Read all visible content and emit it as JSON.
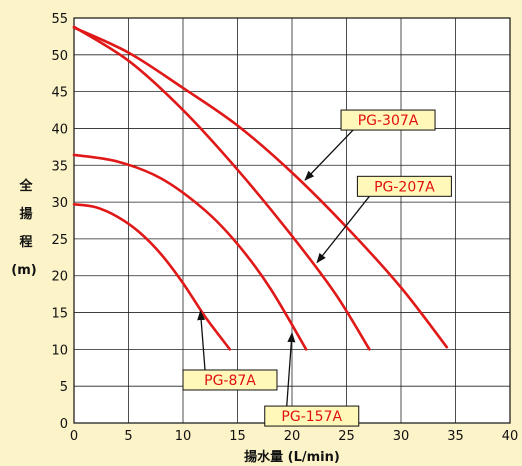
{
  "chart_data": {
    "type": "line",
    "xlabel": "揚水量 (L/min)",
    "ylabel_chars": [
      "全",
      "揚",
      "程"
    ],
    "ylabel_unit": "(m)",
    "xlim": [
      0,
      40
    ],
    "ylim": [
      0,
      55
    ],
    "x_ticks": [
      "0",
      "5",
      "10",
      "15",
      "20",
      "25",
      "30",
      "35",
      "40"
    ],
    "y_ticks": [
      "0",
      "5",
      "10",
      "15",
      "20",
      "25",
      "30",
      "35",
      "40",
      "45",
      "50",
      "55"
    ],
    "grid": true,
    "line_color": "#e01818",
    "series": [
      {
        "name": "PG-87A",
        "points": [
          [
            0,
            29.7
          ],
          [
            2,
            29.3
          ],
          [
            4,
            28.0
          ],
          [
            6,
            25.9
          ],
          [
            8,
            22.9
          ],
          [
            10,
            19.0
          ],
          [
            12,
            14.5
          ],
          [
            14.3,
            10.0
          ]
        ]
      },
      {
        "name": "PG-157A",
        "points": [
          [
            0,
            36.4
          ],
          [
            4,
            35.5
          ],
          [
            8,
            33.2
          ],
          [
            12,
            28.9
          ],
          [
            15,
            24.3
          ],
          [
            18,
            18.3
          ],
          [
            21.3,
            10.0
          ]
        ]
      },
      {
        "name": "PG-207A",
        "points": [
          [
            0,
            53.8
          ],
          [
            5,
            49.2
          ],
          [
            10,
            42.5
          ],
          [
            15,
            34.4
          ],
          [
            20,
            25.4
          ],
          [
            24,
            17.5
          ],
          [
            27.1,
            10.0
          ]
        ]
      },
      {
        "name": "PG-307A",
        "points": [
          [
            0,
            53.7
          ],
          [
            5,
            50.3
          ],
          [
            10,
            45.5
          ],
          [
            15,
            40.4
          ],
          [
            20,
            34.0
          ],
          [
            25,
            26.6
          ],
          [
            30,
            18.4
          ],
          [
            34.2,
            10.3
          ]
        ]
      }
    ],
    "callouts": [
      {
        "series": "PG-307A",
        "label": "PG-307A",
        "box": [
          24.5,
          42.5
        ],
        "arrow_to": [
          21.2,
          33.0
        ]
      },
      {
        "series": "PG-207A",
        "label": "PG-207A",
        "box": [
          26.0,
          33.5
        ],
        "arrow_to": [
          22.3,
          21.8
        ]
      },
      {
        "series": "PG-87A",
        "label": "PG-87A",
        "box": [
          10.0,
          7.2
        ],
        "arrow_to": [
          11.6,
          15.2
        ]
      },
      {
        "series": "PG-157A",
        "label": "PG-157A",
        "box": [
          17.5,
          2.3
        ],
        "arrow_to": [
          20.0,
          12.2
        ]
      }
    ]
  }
}
